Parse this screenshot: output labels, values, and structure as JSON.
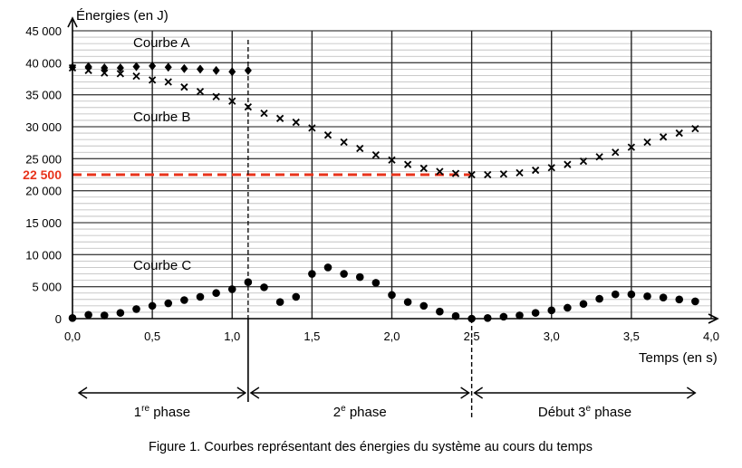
{
  "chart_data": {
    "type": "scatter",
    "ylabel": "Énergies (en J)",
    "xlabel": "Temps (en s)",
    "caption": "Figure 1. Courbes représentant des énergies du système au cours du temps",
    "xlim": [
      0,
      4
    ],
    "ylim": [
      0,
      45000
    ],
    "x_ticks": [
      "0,0",
      "0,5",
      "1,0",
      "1,5",
      "2,0",
      "2,5",
      "3,0",
      "3,5",
      "4,0"
    ],
    "y_ticks": [
      "0",
      "5 000",
      "10 000",
      "15 000",
      "20 000",
      "25 000",
      "30 000",
      "35 000",
      "40 000",
      "45 000"
    ],
    "reference_line": {
      "value": 22500,
      "label": "22 500",
      "color": "#e8341c"
    },
    "grid": true,
    "series": [
      {
        "name": "Courbe A",
        "marker": "diamond",
        "x": [
          0.0,
          0.1,
          0.2,
          0.3,
          0.4,
          0.5,
          0.6,
          0.7,
          0.8,
          0.9,
          1.0,
          1.1
        ],
        "y": [
          39300,
          39400,
          39200,
          39200,
          39400,
          39500,
          39300,
          39100,
          39000,
          38800,
          38600,
          38800
        ]
      },
      {
        "name": "Courbe B",
        "marker": "cross",
        "x": [
          0.0,
          0.1,
          0.2,
          0.3,
          0.4,
          0.5,
          0.6,
          0.7,
          0.8,
          0.9,
          1.0,
          1.1,
          1.2,
          1.3,
          1.4,
          1.5,
          1.6,
          1.7,
          1.8,
          1.9,
          2.0,
          2.1,
          2.2,
          2.3,
          2.4,
          2.5,
          2.6,
          2.7,
          2.8,
          2.9,
          3.0,
          3.1,
          3.2,
          3.3,
          3.4,
          3.5,
          3.6,
          3.7,
          3.8,
          3.9
        ],
        "y": [
          39200,
          38800,
          38400,
          38300,
          37900,
          37300,
          37000,
          36200,
          35500,
          34700,
          34000,
          33100,
          32100,
          31300,
          30700,
          29800,
          28700,
          27600,
          26600,
          25600,
          24800,
          24100,
          23500,
          23000,
          22700,
          22500,
          22500,
          22600,
          22800,
          23200,
          23600,
          24100,
          24600,
          25300,
          26000,
          26800,
          27600,
          28400,
          29000,
          29700
        ]
      },
      {
        "name": "Courbe C",
        "marker": "circle",
        "x": [
          0.0,
          0.1,
          0.2,
          0.3,
          0.4,
          0.5,
          0.6,
          0.7,
          0.8,
          0.9,
          1.0,
          1.1,
          1.2,
          1.3,
          1.4,
          1.5,
          1.6,
          1.7,
          1.8,
          1.9,
          2.0,
          2.1,
          2.2,
          2.3,
          2.4,
          2.5,
          2.6,
          2.7,
          2.8,
          2.9,
          3.0,
          3.1,
          3.2,
          3.3,
          3.4,
          3.5,
          3.6,
          3.7,
          3.8,
          3.9
        ],
        "y": [
          100,
          600,
          500,
          900,
          1500,
          2000,
          2400,
          2900,
          3400,
          4000,
          4600,
          5700,
          4900,
          2600,
          3400,
          7000,
          8000,
          7000,
          6500,
          5600,
          3700,
          2600,
          2000,
          1100,
          400,
          0,
          100,
          300,
          500,
          900,
          1300,
          1700,
          2300,
          3100,
          3800,
          3800,
          3500,
          3300,
          3000,
          2700
        ]
      }
    ],
    "phase_markers": [
      1.1,
      2.5
    ],
    "phases": [
      {
        "label": "1",
        "sup": "re",
        "rest": " phase",
        "x0": 0,
        "x1": 1.1
      },
      {
        "label": "2",
        "sup": "e",
        "rest": " phase",
        "x0": 1.1,
        "x1": 2.5
      },
      {
        "label": "Début 3",
        "sup": "e",
        "rest": " phase",
        "x0": 2.5,
        "x1": 3.9
      }
    ]
  }
}
